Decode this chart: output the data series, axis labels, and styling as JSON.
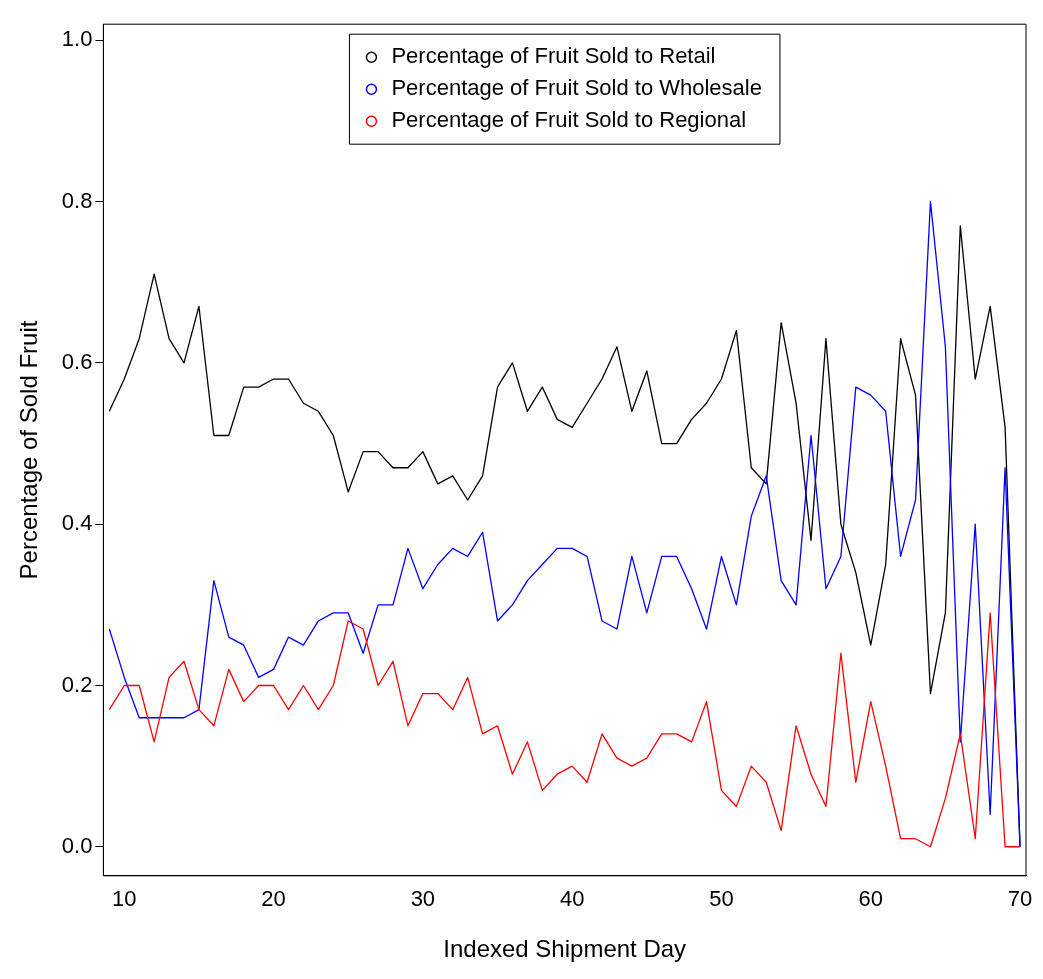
{
  "chart_data": {
    "type": "line",
    "xlabel": "Indexed Shipment Day",
    "ylabel": "Percentage of Sold Fruit",
    "x": [
      9,
      10,
      11,
      12,
      13,
      14,
      15,
      16,
      17,
      18,
      19,
      20,
      21,
      22,
      23,
      24,
      25,
      26,
      27,
      28,
      29,
      30,
      31,
      32,
      33,
      34,
      35,
      36,
      37,
      38,
      39,
      40,
      41,
      42,
      43,
      44,
      45,
      46,
      47,
      48,
      49,
      50,
      51,
      52,
      53,
      54,
      55,
      56,
      57,
      58,
      59,
      60,
      61,
      62,
      63,
      64,
      65,
      66,
      67,
      68,
      69,
      70
    ],
    "series": [
      {
        "name": "Percentage of Fruit Sold to Retail",
        "color": "#000000",
        "values": [
          0.54,
          0.58,
          0.63,
          0.71,
          0.63,
          0.6,
          0.67,
          0.51,
          0.51,
          0.57,
          0.57,
          0.58,
          0.58,
          0.55,
          0.54,
          0.51,
          0.44,
          0.49,
          0.49,
          0.47,
          0.47,
          0.49,
          0.45,
          0.46,
          0.43,
          0.46,
          0.57,
          0.6,
          0.54,
          0.57,
          0.53,
          0.52,
          0.55,
          0.58,
          0.62,
          0.54,
          0.59,
          0.5,
          0.5,
          0.53,
          0.55,
          0.58,
          0.64,
          0.47,
          0.45,
          0.65,
          0.55,
          0.38,
          0.63,
          0.4,
          0.34,
          0.25,
          0.35,
          0.63,
          0.56,
          0.19,
          0.29,
          0.77,
          0.58,
          0.67,
          0.52,
          0.0
        ]
      },
      {
        "name": "Percentage of Fruit Sold to Wholesale",
        "color": "#0000ff",
        "values": [
          0.27,
          0.21,
          0.16,
          0.16,
          0.16,
          0.16,
          0.17,
          0.33,
          0.26,
          0.25,
          0.21,
          0.22,
          0.26,
          0.25,
          0.28,
          0.29,
          0.29,
          0.24,
          0.3,
          0.3,
          0.37,
          0.32,
          0.35,
          0.37,
          0.36,
          0.39,
          0.28,
          0.3,
          0.33,
          0.35,
          0.37,
          0.37,
          0.36,
          0.28,
          0.27,
          0.36,
          0.29,
          0.36,
          0.36,
          0.32,
          0.27,
          0.36,
          0.3,
          0.41,
          0.46,
          0.33,
          0.3,
          0.51,
          0.32,
          0.36,
          0.57,
          0.56,
          0.54,
          0.36,
          0.43,
          0.8,
          0.62,
          0.13,
          0.4,
          0.04,
          0.47,
          0.0
        ]
      },
      {
        "name": "Percentage of Fruit Sold to Regional",
        "color": "#ff0000",
        "values": [
          0.17,
          0.2,
          0.2,
          0.13,
          0.21,
          0.23,
          0.17,
          0.15,
          0.22,
          0.18,
          0.2,
          0.2,
          0.17,
          0.2,
          0.17,
          0.2,
          0.28,
          0.27,
          0.2,
          0.23,
          0.15,
          0.19,
          0.19,
          0.17,
          0.21,
          0.14,
          0.15,
          0.09,
          0.13,
          0.07,
          0.09,
          0.1,
          0.08,
          0.14,
          0.11,
          0.1,
          0.11,
          0.14,
          0.14,
          0.13,
          0.18,
          0.07,
          0.05,
          0.1,
          0.08,
          0.02,
          0.15,
          0.09,
          0.05,
          0.24,
          0.08,
          0.18,
          0.1,
          0.01,
          0.01,
          0.0,
          0.06,
          0.14,
          0.01,
          0.29,
          0.0,
          0.0
        ]
      }
    ],
    "xlim": [
      8.6,
      70.4
    ],
    "xticks": [
      10,
      20,
      30,
      40,
      50,
      60,
      70
    ],
    "ylim": [
      -0.036,
      1.02
    ],
    "yticks": [
      {
        "value": 0,
        "label": "0.0"
      },
      {
        "value": 0.2,
        "label": "0.2"
      },
      {
        "value": 0.4,
        "label": "0.4"
      },
      {
        "value": 0.6,
        "label": "0.6"
      },
      {
        "value": 0.8,
        "label": "0.8"
      },
      {
        "value": 1,
        "label": "1.0"
      }
    ],
    "grid": false,
    "legend": "top",
    "marker": "none",
    "line_style": "solid"
  }
}
